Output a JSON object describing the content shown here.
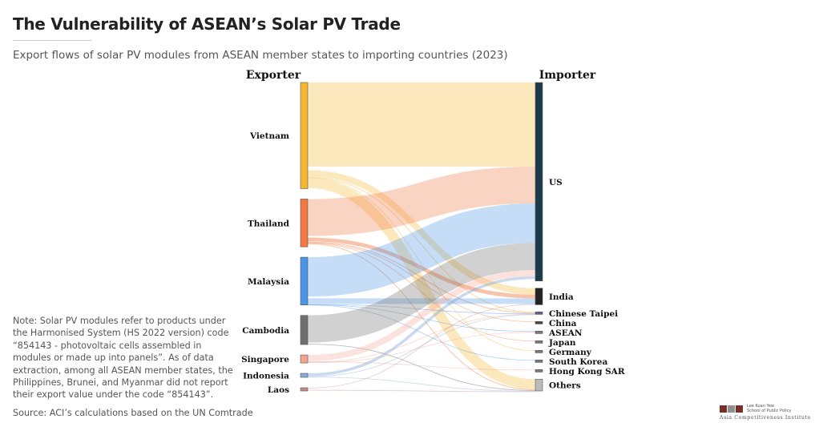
{
  "title": "The Vulnerability of ASEAN’s Solar PV Trade",
  "subtitle": "Export flows of solar PV modules from ASEAN member states to importing countries (2023)",
  "note": "Note: Solar PV modules refer to products under the Harmonised System (HS 2022 version) code “854143 - photovoltaic cells assembled in modules or made up into panels”. As of data extraction, among all ASEAN member states, the Philippines, Brunei, and Myanmar did not report their export value under the code “854143”.",
  "source": "Source: ACI’s calculations based on the UN Comtrade",
  "logo": {
    "name_line1": "Lee Kuan Yew",
    "name_line2": "School of Public Policy",
    "institute": "Asia Competitiveness Institute",
    "colors": [
      "#7a2e2a",
      "#8f8f8f",
      "#7a2e2a"
    ]
  },
  "chart_data": {
    "type": "sankey",
    "exporter_header": "Exporter",
    "importer_header": "Importer",
    "exporters": [
      {
        "name": "Vietnam",
        "value": 40,
        "color": "#f5b731"
      },
      {
        "name": "Thailand",
        "value": 18,
        "color": "#f07a42"
      },
      {
        "name": "Malaysia",
        "value": 18,
        "color": "#4a95e6"
      },
      {
        "name": "Cambodia",
        "value": 11,
        "color": "#6f6f6f"
      },
      {
        "name": "Singapore",
        "value": 3,
        "color": "#f4a592"
      },
      {
        "name": "Indonesia",
        "value": 1.5,
        "color": "#8aaad8"
      },
      {
        "name": "Laos",
        "value": 0.3,
        "color": "#c58a8a"
      }
    ],
    "importers": [
      {
        "name": "US",
        "value": 78,
        "color": "#1c3a4a"
      },
      {
        "name": "India",
        "value": 6.5,
        "color": "#222222"
      },
      {
        "name": "Chinese Taipei",
        "value": 0.9,
        "color": "#5a5d8f"
      },
      {
        "name": "China",
        "value": 0.3,
        "color": "#444444"
      },
      {
        "name": "ASEAN",
        "value": 0.3,
        "color": "#777777"
      },
      {
        "name": "Japan",
        "value": 0.3,
        "color": "#777777"
      },
      {
        "name": "Germany",
        "value": 0.3,
        "color": "#777777"
      },
      {
        "name": "South Korea",
        "value": 0.3,
        "color": "#777777"
      },
      {
        "name": "Hong Kong SAR",
        "value": 0.3,
        "color": "#777777"
      },
      {
        "name": "Others",
        "value": 4.6,
        "color": "#bbbbbb"
      }
    ],
    "flows": [
      {
        "source": "Vietnam",
        "target": "US",
        "value": 33
      },
      {
        "source": "Vietnam",
        "target": "India",
        "value": 2.5
      },
      {
        "source": "Vietnam",
        "target": "Chinese Taipei",
        "value": 0.3
      },
      {
        "source": "Vietnam",
        "target": "Germany",
        "value": 0.2
      },
      {
        "source": "Vietnam",
        "target": "Others",
        "value": 4
      },
      {
        "source": "Thailand",
        "target": "US",
        "value": 14.5
      },
      {
        "source": "Thailand",
        "target": "India",
        "value": 1.5
      },
      {
        "source": "Thailand",
        "target": "Chinese Taipei",
        "value": 0.3
      },
      {
        "source": "Thailand",
        "target": "China",
        "value": 0.2
      },
      {
        "source": "Thailand",
        "target": "Japan",
        "value": 0.2
      },
      {
        "source": "Thailand",
        "target": "Others",
        "value": 0.3
      },
      {
        "source": "Malaysia",
        "target": "US",
        "value": 15.5
      },
      {
        "source": "Malaysia",
        "target": "India",
        "value": 2.2
      },
      {
        "source": "Malaysia",
        "target": "Chinese Taipei",
        "value": 0.1
      },
      {
        "source": "Malaysia",
        "target": "ASEAN",
        "value": 0.1
      },
      {
        "source": "Malaysia",
        "target": "South Korea",
        "value": 0.1
      },
      {
        "source": "Cambodia",
        "target": "US",
        "value": 10.7
      },
      {
        "source": "Cambodia",
        "target": "Others",
        "value": 0.3
      },
      {
        "source": "Singapore",
        "target": "US",
        "value": 2.4
      },
      {
        "source": "Singapore",
        "target": "Hong Kong SAR",
        "value": 0.2
      },
      {
        "source": "Singapore",
        "target": "Chinese Taipei",
        "value": 0.2
      },
      {
        "source": "Singapore",
        "target": "ASEAN",
        "value": 0.2
      },
      {
        "source": "Indonesia",
        "target": "US",
        "value": 1.1
      },
      {
        "source": "Indonesia",
        "target": "Chinese Taipei",
        "value": 0.2
      },
      {
        "source": "Indonesia",
        "target": "Others",
        "value": 0.2
      },
      {
        "source": "Laos",
        "target": "India",
        "value": 0.2
      },
      {
        "source": "Laos",
        "target": "Others",
        "value": 0.1
      }
    ]
  }
}
